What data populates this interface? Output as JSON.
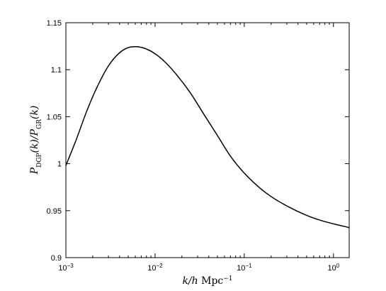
{
  "chart_data": {
    "type": "line",
    "title": "",
    "xlabel": {
      "k": "k",
      "slash_h": "/h",
      "unit": " Mpc",
      "exp": "−1"
    },
    "ylabel": {
      "P1": "P",
      "sub1": "DGP",
      "arg1": "(k)/",
      "P2": "P",
      "sub2": "GR",
      "arg2": "(k)"
    },
    "xscale": "log",
    "xlim": [
      0.001,
      1.5
    ],
    "ylim": [
      0.9,
      1.15
    ],
    "grid": false,
    "legend": "none",
    "xticks": [
      {
        "value": 0.001,
        "base": "10",
        "exp": "−3"
      },
      {
        "value": 0.01,
        "base": "10",
        "exp": "−2"
      },
      {
        "value": 0.1,
        "base": "10",
        "exp": "−1"
      },
      {
        "value": 1,
        "base": "10",
        "exp": "0"
      }
    ],
    "yticks": [
      {
        "value": 0.9,
        "label": "0.9"
      },
      {
        "value": 0.95,
        "label": "0.95"
      },
      {
        "value": 1.0,
        "label": "1"
      },
      {
        "value": 1.05,
        "label": "1.05"
      },
      {
        "value": 1.1,
        "label": "1.1"
      },
      {
        "value": 1.15,
        "label": "1.15"
      }
    ],
    "series": [
      {
        "color": "#000000",
        "x": [
          0.001,
          0.0013,
          0.0017,
          0.0022,
          0.003,
          0.004,
          0.005,
          0.006,
          0.0075,
          0.01,
          0.013,
          0.018,
          0.025,
          0.035,
          0.05,
          0.07,
          0.1,
          0.15,
          0.2,
          0.3,
          0.5,
          0.7,
          1.0,
          1.5
        ],
        "y": [
          0.998,
          1.025,
          1.055,
          1.08,
          1.104,
          1.118,
          1.1235,
          1.1245,
          1.123,
          1.117,
          1.108,
          1.093,
          1.075,
          1.053,
          1.03,
          1.008,
          0.99,
          0.974,
          0.965,
          0.955,
          0.945,
          0.94,
          0.936,
          0.932
        ]
      }
    ]
  }
}
